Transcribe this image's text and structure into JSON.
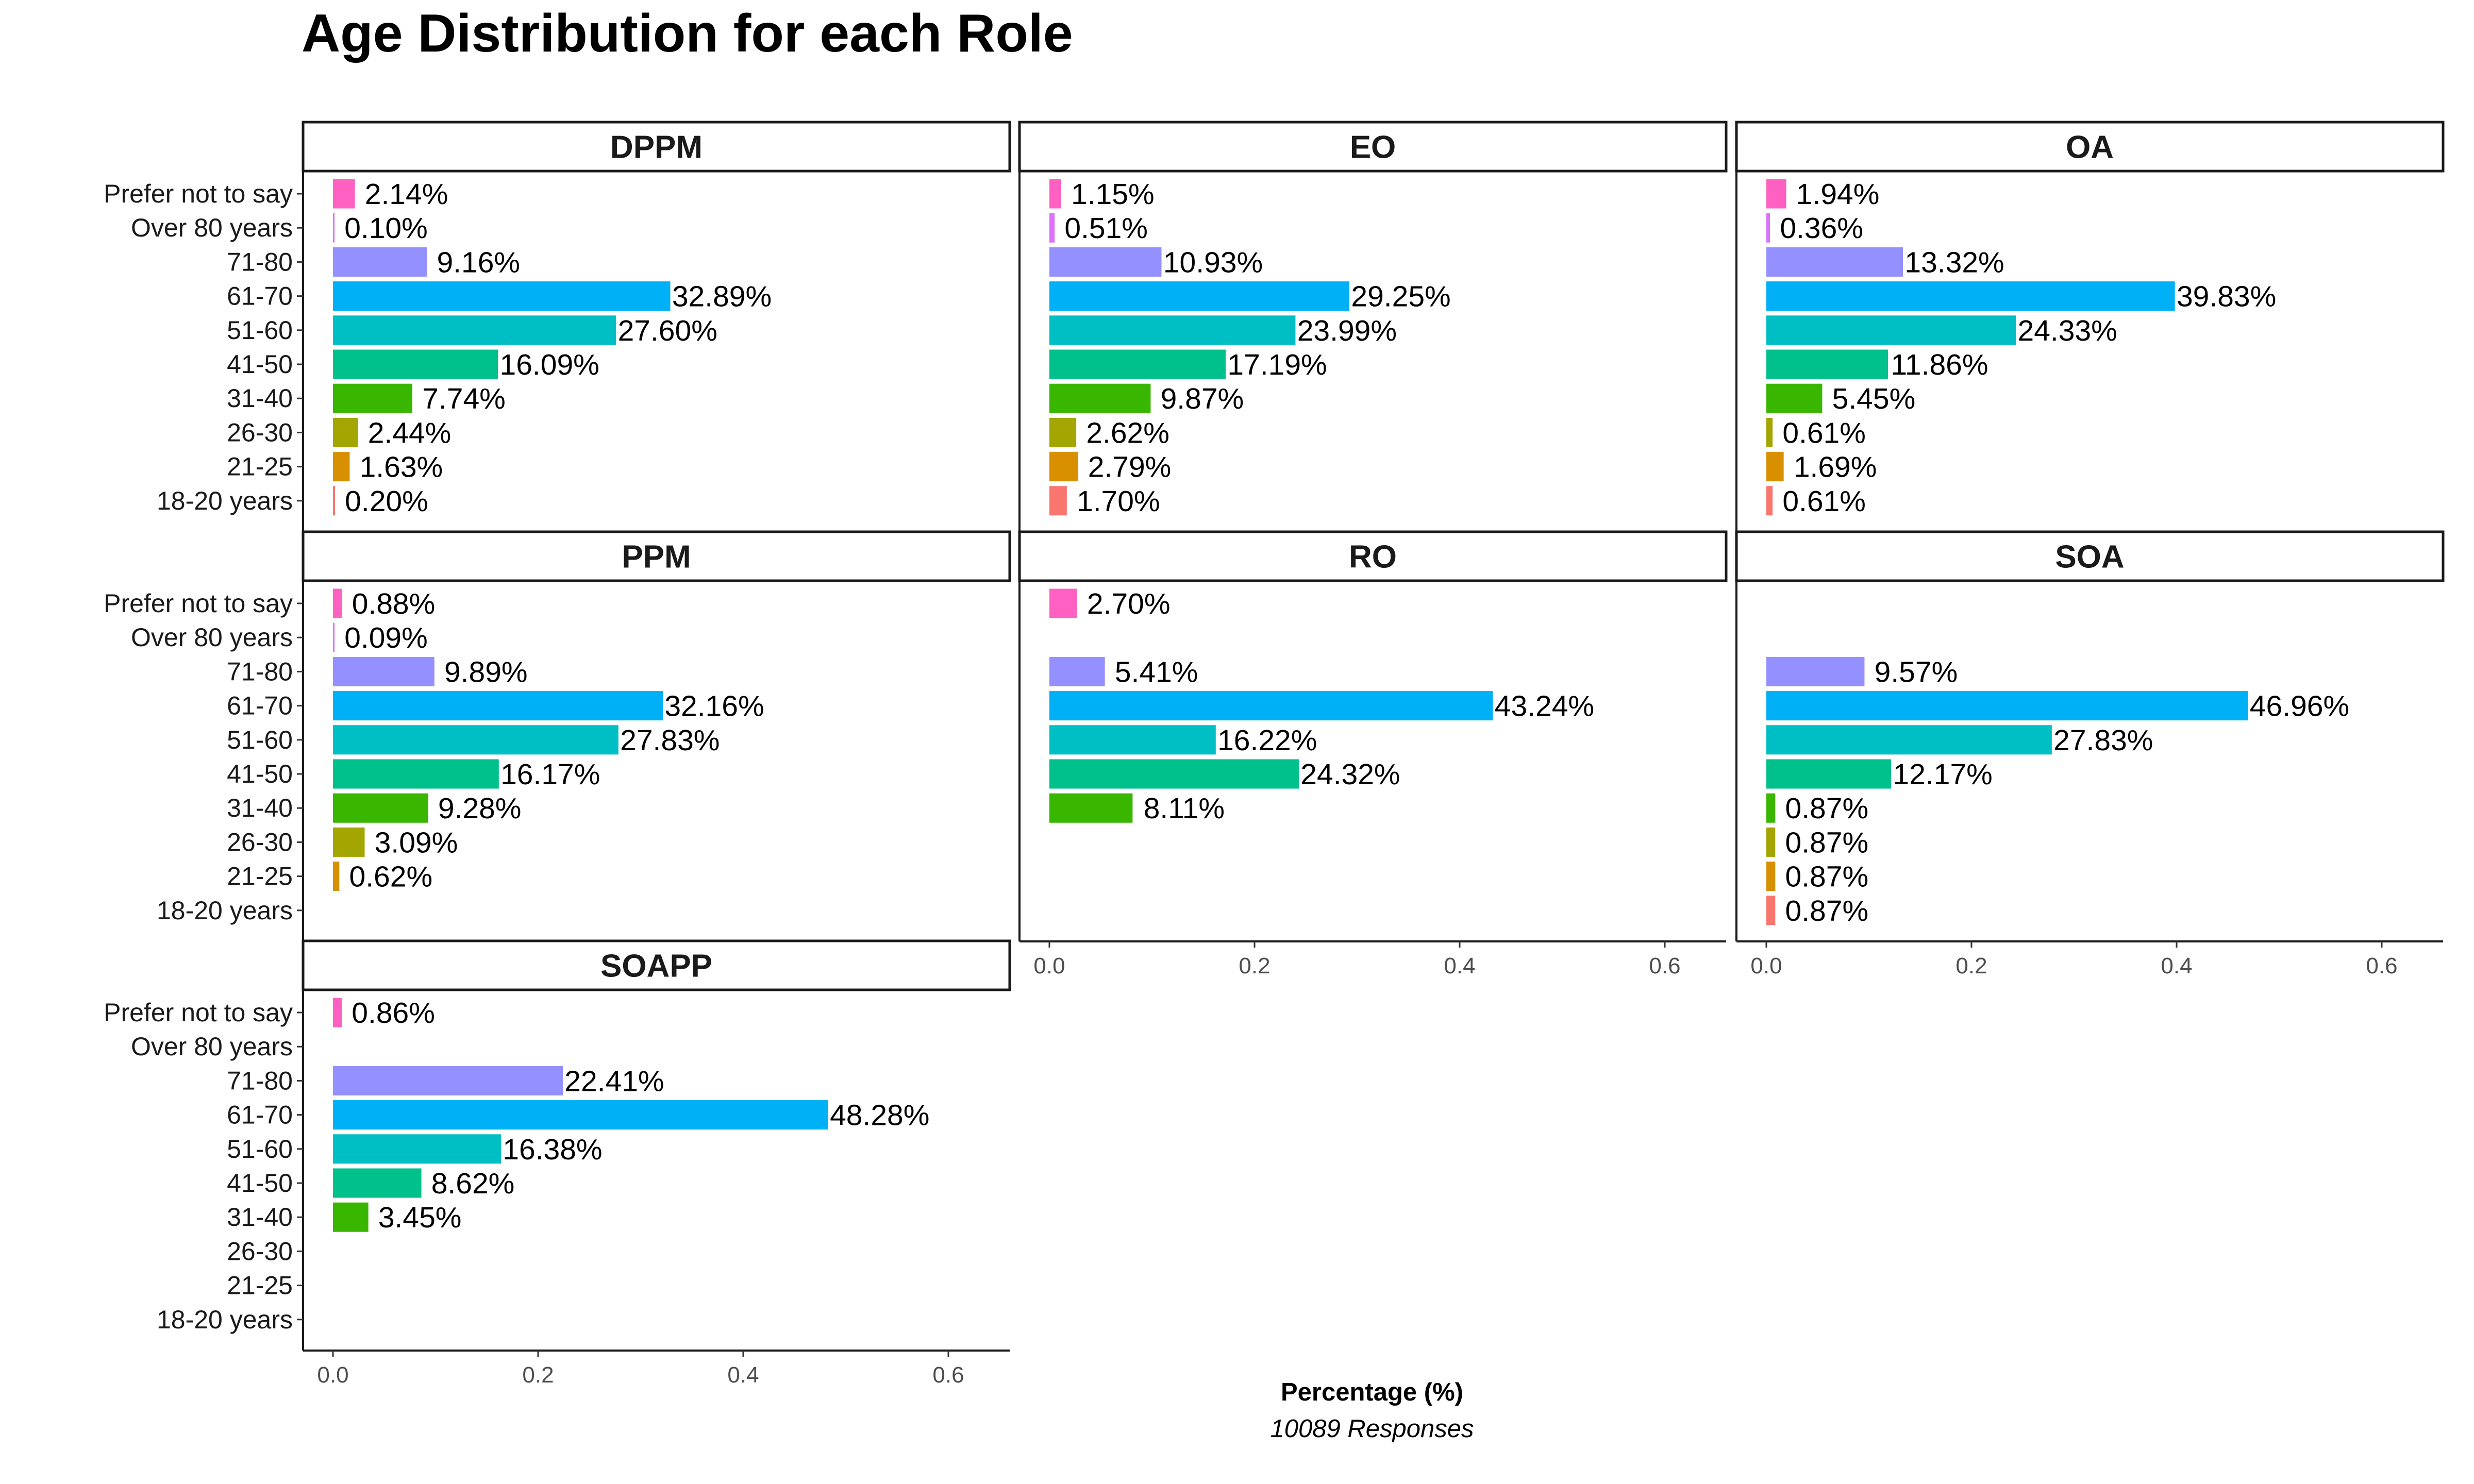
{
  "chart_data": {
    "type": "bar",
    "orientation": "horizontal",
    "title": "Age Distribution for each Role",
    "xlabel": "Percentage (%)",
    "caption": "10089 Responses",
    "xlim": [
      0,
      0.65
    ],
    "x_ticks": [
      "0.0",
      "0.2",
      "0.4",
      "0.6"
    ],
    "x_tick_values": [
      0,
      0.2,
      0.4,
      0.6
    ],
    "categories": [
      "Prefer not to say",
      "Over 80 years",
      "71-80",
      "61-70",
      "51-60",
      "41-50",
      "31-40",
      "26-30",
      "21-25",
      "18-20 years"
    ],
    "category_colors": {
      "Prefer not to say": "#FF61C3",
      "Over 80 years": "#DB72FB",
      "71-80": "#9590FF",
      "61-70": "#00B0F6",
      "51-60": "#00BFC4",
      "41-50": "#00C08B",
      "31-40": "#39B600",
      "26-30": "#A3A500",
      "21-25": "#D89000",
      "18-20 years": "#F8766D"
    },
    "panels": [
      {
        "name": "DPPM",
        "bars": [
          {
            "category": "Prefer not to say",
            "value": 0.0214,
            "label": "2.14%"
          },
          {
            "category": "Over 80 years",
            "value": 0.001,
            "label": "0.10%"
          },
          {
            "category": "71-80",
            "value": 0.0916,
            "label": "9.16%"
          },
          {
            "category": "61-70",
            "value": 0.3289,
            "label": "32.89%"
          },
          {
            "category": "51-60",
            "value": 0.276,
            "label": "27.60%"
          },
          {
            "category": "41-50",
            "value": 0.1609,
            "label": "16.09%"
          },
          {
            "category": "31-40",
            "value": 0.0774,
            "label": "7.74%"
          },
          {
            "category": "26-30",
            "value": 0.0244,
            "label": "2.44%"
          },
          {
            "category": "21-25",
            "value": 0.0163,
            "label": "1.63%"
          },
          {
            "category": "18-20 years",
            "value": 0.002,
            "label": "0.20%"
          }
        ]
      },
      {
        "name": "EO",
        "bars": [
          {
            "category": "Prefer not to say",
            "value": 0.0115,
            "label": "1.15%"
          },
          {
            "category": "Over 80 years",
            "value": 0.0051,
            "label": "0.51%"
          },
          {
            "category": "71-80",
            "value": 0.1093,
            "label": "10.93%"
          },
          {
            "category": "61-70",
            "value": 0.2925,
            "label": "29.25%"
          },
          {
            "category": "51-60",
            "value": 0.2399,
            "label": "23.99%"
          },
          {
            "category": "41-50",
            "value": 0.1719,
            "label": "17.19%"
          },
          {
            "category": "31-40",
            "value": 0.0987,
            "label": "9.87%"
          },
          {
            "category": "26-30",
            "value": 0.0262,
            "label": "2.62%"
          },
          {
            "category": "21-25",
            "value": 0.0279,
            "label": "2.79%"
          },
          {
            "category": "18-20 years",
            "value": 0.017,
            "label": "1.70%"
          }
        ]
      },
      {
        "name": "OA",
        "bars": [
          {
            "category": "Prefer not to say",
            "value": 0.0194,
            "label": "1.94%"
          },
          {
            "category": "Over 80 years",
            "value": 0.0036,
            "label": "0.36%"
          },
          {
            "category": "71-80",
            "value": 0.1332,
            "label": "13.32%"
          },
          {
            "category": "61-70",
            "value": 0.3983,
            "label": "39.83%"
          },
          {
            "category": "51-60",
            "value": 0.2433,
            "label": "24.33%"
          },
          {
            "category": "41-50",
            "value": 0.1186,
            "label": "11.86%"
          },
          {
            "category": "31-40",
            "value": 0.0545,
            "label": "5.45%"
          },
          {
            "category": "26-30",
            "value": 0.0061,
            "label": "0.61%"
          },
          {
            "category": "21-25",
            "value": 0.0169,
            "label": "1.69%"
          },
          {
            "category": "18-20 years",
            "value": 0.0061,
            "label": "0.61%"
          }
        ]
      },
      {
        "name": "PPM",
        "bars": [
          {
            "category": "Prefer not to say",
            "value": 0.0088,
            "label": "0.88%"
          },
          {
            "category": "Over 80 years",
            "value": 0.0009,
            "label": "0.09%"
          },
          {
            "category": "71-80",
            "value": 0.0989,
            "label": "9.89%"
          },
          {
            "category": "61-70",
            "value": 0.3216,
            "label": "32.16%"
          },
          {
            "category": "51-60",
            "value": 0.2783,
            "label": "27.83%"
          },
          {
            "category": "41-50",
            "value": 0.1617,
            "label": "16.17%"
          },
          {
            "category": "31-40",
            "value": 0.0928,
            "label": "9.28%"
          },
          {
            "category": "26-30",
            "value": 0.0309,
            "label": "3.09%"
          },
          {
            "category": "21-25",
            "value": 0.0062,
            "label": "0.62%"
          }
        ]
      },
      {
        "name": "RO",
        "bars": [
          {
            "category": "Prefer not to say",
            "value": 0.027,
            "label": "2.70%"
          },
          {
            "category": "71-80",
            "value": 0.0541,
            "label": "5.41%"
          },
          {
            "category": "61-70",
            "value": 0.4324,
            "label": "43.24%"
          },
          {
            "category": "51-60",
            "value": 0.1622,
            "label": "16.22%"
          },
          {
            "category": "41-50",
            "value": 0.2432,
            "label": "24.32%"
          },
          {
            "category": "31-40",
            "value": 0.0811,
            "label": "8.11%"
          }
        ]
      },
      {
        "name": "SOA",
        "bars": [
          {
            "category": "71-80",
            "value": 0.0957,
            "label": "9.57%"
          },
          {
            "category": "61-70",
            "value": 0.4696,
            "label": "46.96%"
          },
          {
            "category": "51-60",
            "value": 0.2783,
            "label": "27.83%"
          },
          {
            "category": "41-50",
            "value": 0.1217,
            "label": "12.17%"
          },
          {
            "category": "31-40",
            "value": 0.0087,
            "label": "0.87%"
          },
          {
            "category": "26-30",
            "value": 0.0087,
            "label": "0.87%"
          },
          {
            "category": "21-25",
            "value": 0.0087,
            "label": "0.87%"
          },
          {
            "category": "18-20 years",
            "value": 0.0087,
            "label": "0.87%"
          }
        ]
      },
      {
        "name": "SOAPP",
        "bars": [
          {
            "category": "Prefer not to say",
            "value": 0.0086,
            "label": "0.86%"
          },
          {
            "category": "71-80",
            "value": 0.2241,
            "label": "22.41%"
          },
          {
            "category": "61-70",
            "value": 0.4828,
            "label": "48.28%"
          },
          {
            "category": "51-60",
            "value": 0.1638,
            "label": "16.38%"
          },
          {
            "category": "41-50",
            "value": 0.0862,
            "label": "8.62%"
          },
          {
            "category": "31-40",
            "value": 0.0345,
            "label": "3.45%"
          }
        ]
      }
    ]
  }
}
